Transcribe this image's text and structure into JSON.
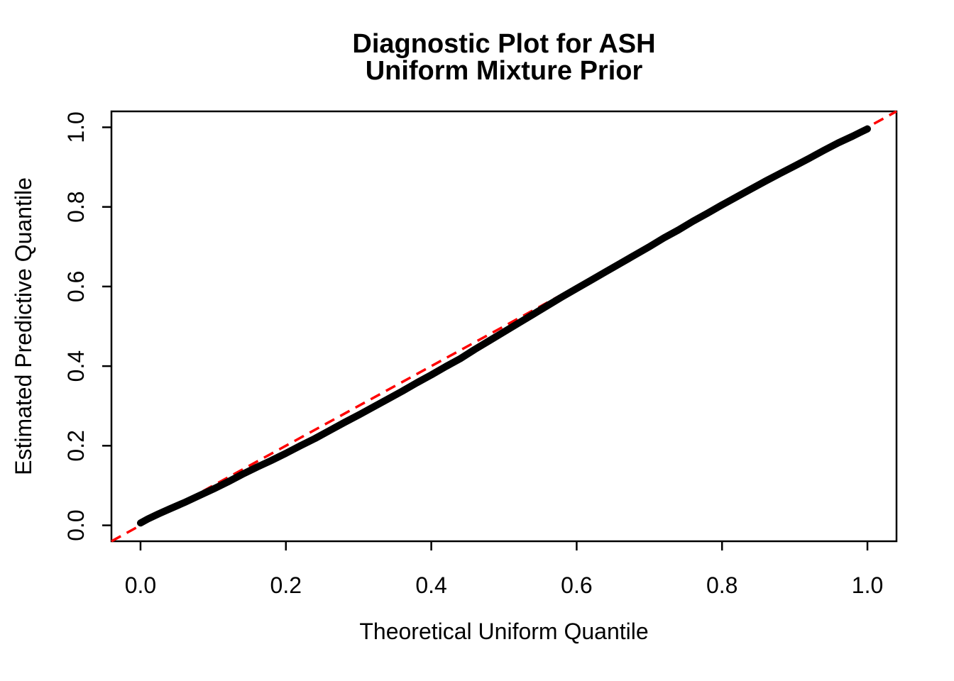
{
  "figure": {
    "title_line1": "Diagnostic Plot for ASH",
    "title_line2": "Uniform Mixture Prior"
  },
  "colors": {
    "background": "#FFFFFF",
    "foreground": "#000000",
    "curve": "#000000",
    "reference_line": "#FF0000"
  },
  "chart_data": {
    "type": "scatter",
    "title": "Diagnostic Plot for ASH\nUniform Mixture Prior",
    "xlabel": "Theoretical Uniform Quantile",
    "ylabel": "Estimated Predictive Quantile",
    "xlim": [
      -0.04,
      1.04
    ],
    "ylim": [
      -0.04,
      1.04
    ],
    "grid": false,
    "legend_position": "none",
    "x_ticks": [
      0.0,
      0.2,
      0.4,
      0.6,
      0.8,
      1.0
    ],
    "y_ticks": [
      0.0,
      0.2,
      0.4,
      0.6,
      0.8,
      1.0
    ],
    "x_tick_labels": [
      "0.0",
      "0.2",
      "0.4",
      "0.6",
      "0.8",
      "1.0"
    ],
    "y_tick_labels": [
      "0.0",
      "0.2",
      "0.4",
      "0.6",
      "0.8",
      "1.0"
    ],
    "series": [
      {
        "name": "estimated-predictive-quantiles",
        "style": "thick-solid",
        "color": "#000000",
        "x": [
          0.0,
          0.01,
          0.025,
          0.04,
          0.06,
          0.08,
          0.1,
          0.12,
          0.14,
          0.16,
          0.18,
          0.2,
          0.22,
          0.24,
          0.26,
          0.28,
          0.3,
          0.32,
          0.34,
          0.36,
          0.38,
          0.4,
          0.42,
          0.44,
          0.46,
          0.48,
          0.5,
          0.52,
          0.54,
          0.56,
          0.58,
          0.6,
          0.62,
          0.64,
          0.66,
          0.68,
          0.7,
          0.72,
          0.74,
          0.76,
          0.78,
          0.8,
          0.82,
          0.84,
          0.86,
          0.88,
          0.9,
          0.92,
          0.94,
          0.96,
          0.98,
          0.99,
          1.0
        ],
        "y": [
          0.006,
          0.016,
          0.029,
          0.041,
          0.057,
          0.074,
          0.091,
          0.109,
          0.128,
          0.146,
          0.163,
          0.181,
          0.2,
          0.218,
          0.238,
          0.258,
          0.277,
          0.297,
          0.317,
          0.337,
          0.358,
          0.378,
          0.399,
          0.419,
          0.442,
          0.464,
          0.486,
          0.508,
          0.53,
          0.552,
          0.574,
          0.595,
          0.616,
          0.637,
          0.658,
          0.679,
          0.7,
          0.722,
          0.742,
          0.764,
          0.784,
          0.805,
          0.825,
          0.845,
          0.865,
          0.884,
          0.903,
          0.922,
          0.942,
          0.961,
          0.978,
          0.987,
          0.996
        ]
      },
      {
        "name": "reference-diagonal",
        "style": "dashed-thin",
        "color": "#FF0000",
        "x": [
          -0.04,
          1.04
        ],
        "y": [
          -0.04,
          1.04
        ]
      }
    ]
  }
}
